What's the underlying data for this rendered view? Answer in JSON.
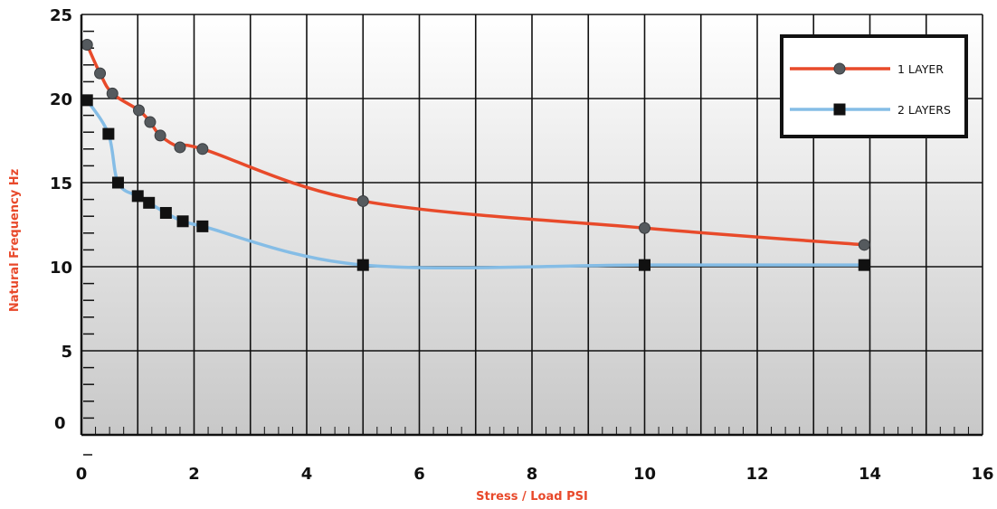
{
  "chart_data": {
    "type": "line",
    "xlabel": "Stress / Load PSI",
    "ylabel": "Natural Frequency Hz",
    "xlim": [
      0,
      16
    ],
    "ylim": [
      0,
      25
    ],
    "x_ticks": [
      "0",
      "2",
      "4",
      "6",
      "8",
      "10",
      "12",
      "14",
      "16"
    ],
    "y_ticks": [
      "0",
      "5",
      "10",
      "15",
      "20",
      "25"
    ],
    "grid": true,
    "legend_position": "top-right",
    "axis_title_color": "#e8492b",
    "series": [
      {
        "name": "1 LAYER",
        "color": "#e84a2a",
        "marker": "circle",
        "x": [
          0.1,
          0.33,
          0.55,
          1.02,
          1.22,
          1.4,
          1.75,
          2.15,
          5.0,
          10.0,
          13.9
        ],
        "y": [
          23.2,
          21.5,
          20.3,
          19.3,
          18.6,
          17.8,
          17.1,
          17.0,
          13.9,
          12.3,
          11.3
        ]
      },
      {
        "name": "2 LAYERS",
        "color": "#85bde6",
        "marker": "square",
        "x": [
          0.1,
          0.48,
          0.65,
          1.0,
          1.2,
          1.5,
          1.8,
          2.15,
          5.0,
          10.0,
          13.9
        ],
        "y": [
          19.9,
          17.9,
          15.0,
          14.2,
          13.8,
          13.2,
          12.7,
          12.4,
          10.1,
          10.1,
          10.1
        ]
      }
    ]
  }
}
